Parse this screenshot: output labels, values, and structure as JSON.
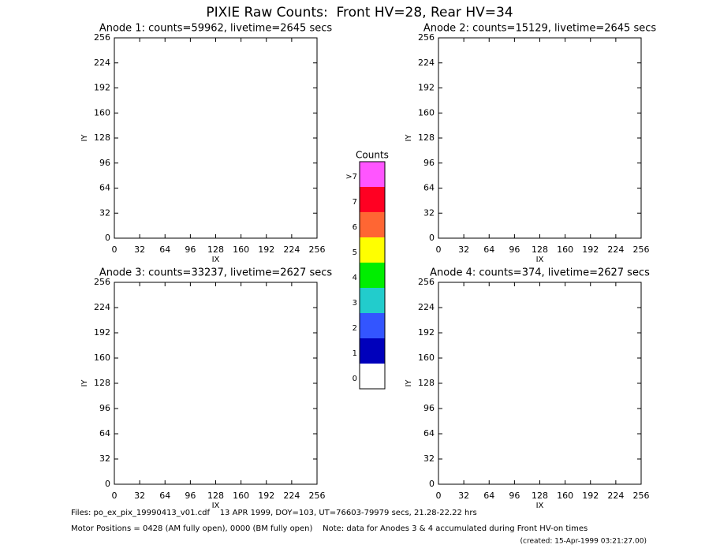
{
  "title": "PIXIE Raw Counts:  Front HV=28, Rear HV=34",
  "chart_data": [
    {
      "type": "heatmap",
      "title": "Anode 1: counts=59962, livetime=2645 secs",
      "xlabel": "IX",
      "ylabel": "IY",
      "xlim": [
        0,
        256
      ],
      "ylim": [
        0,
        256
      ],
      "xticks": [
        0,
        32,
        64,
        96,
        128,
        160,
        192,
        224,
        256
      ],
      "yticks": [
        0,
        32,
        64,
        96,
        128,
        160,
        192,
        224,
        256
      ]
    },
    {
      "type": "heatmap",
      "title": "Anode 2: counts=15129, livetime=2645 secs",
      "xlabel": "IX",
      "ylabel": "IY",
      "xlim": [
        0,
        256
      ],
      "ylim": [
        0,
        256
      ],
      "xticks": [
        0,
        32,
        64,
        96,
        128,
        160,
        192,
        224,
        256
      ],
      "yticks": [
        0,
        32,
        64,
        96,
        128,
        160,
        192,
        224,
        256
      ]
    },
    {
      "type": "heatmap",
      "title": "Anode 3: counts=33237, livetime=2627 secs",
      "xlabel": "IX",
      "ylabel": "IY",
      "xlim": [
        0,
        256
      ],
      "ylim": [
        0,
        256
      ],
      "xticks": [
        0,
        32,
        64,
        96,
        128,
        160,
        192,
        224,
        256
      ],
      "yticks": [
        0,
        32,
        64,
        96,
        128,
        160,
        192,
        224,
        256
      ]
    },
    {
      "type": "heatmap",
      "title": "Anode 4: counts=374, livetime=2627 secs",
      "xlabel": "IX",
      "ylabel": "IY",
      "xlim": [
        0,
        256
      ],
      "ylim": [
        0,
        256
      ],
      "xticks": [
        0,
        32,
        64,
        96,
        128,
        160,
        192,
        224,
        256
      ],
      "yticks": [
        0,
        32,
        64,
        96,
        128,
        160,
        192,
        224,
        256
      ]
    }
  ],
  "colorbar": {
    "title": "Counts",
    "levels": [
      {
        "label": ">7",
        "color": "#ff55ff"
      },
      {
        "label": "7",
        "color": "#ff0022"
      },
      {
        "label": "6",
        "color": "#ff6633"
      },
      {
        "label": "5",
        "color": "#ffff00"
      },
      {
        "label": "4",
        "color": "#00ee00"
      },
      {
        "label": "3",
        "color": "#22cccc"
      },
      {
        "label": "2",
        "color": "#3355ff"
      },
      {
        "label": "1",
        "color": "#0000bb"
      },
      {
        "label": "0",
        "color": "#ffffff"
      }
    ]
  },
  "notes": [
    "Files: po_ex_pix_19990413_v01.cdf    13 APR 1999, DOY=103, UT=76603-79979 secs, 21.28-22.22 hrs",
    "Motor Positions = 0428 (AM fully open), 0000 (BM fully open)    Note: data for Anodes 3 & 4 accumulated during Front HV-on times",
    "(created: 15-Apr-1999 03:21:27.00)"
  ]
}
